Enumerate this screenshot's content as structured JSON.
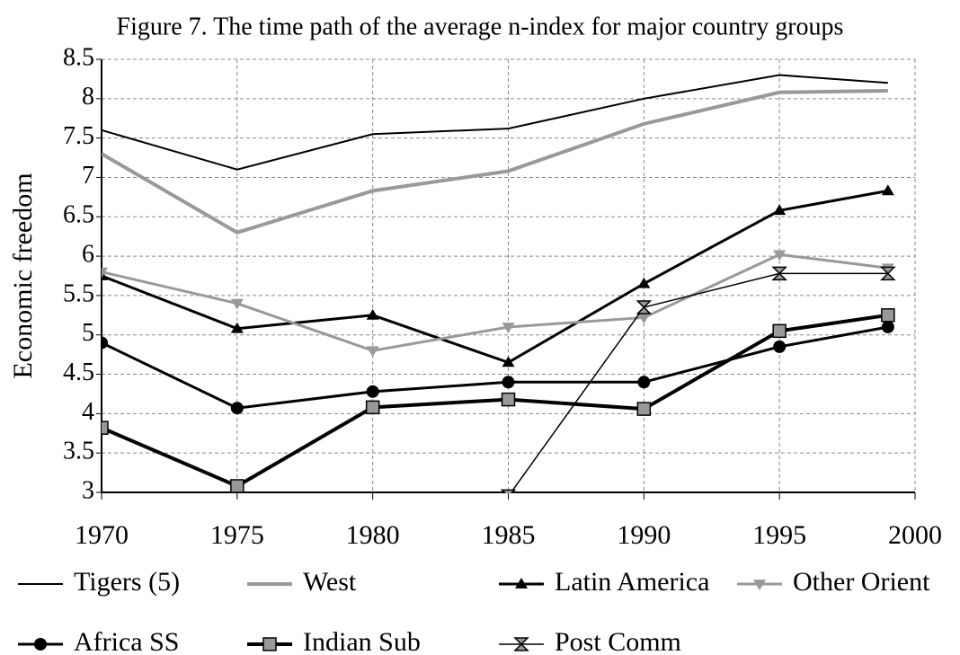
{
  "chart_data": {
    "type": "line",
    "title": "Figure 7. The time path of the average n-index for major country groups",
    "y_label": "Economic freedom",
    "x": [
      1970,
      1975,
      1980,
      1985,
      1990,
      1995,
      1999
    ],
    "xlim": [
      1970,
      2000
    ],
    "xticks": [
      1970,
      1975,
      1980,
      1985,
      1990,
      1995,
      2000
    ],
    "ylim": [
      3,
      8.5
    ],
    "yticks": [
      3,
      3.5,
      4,
      4.5,
      5,
      5.5,
      6,
      6.5,
      7,
      7.5,
      8,
      8.5
    ],
    "grid": true,
    "legend": "bottom",
    "series": [
      {
        "name": "Tigers (5)",
        "color": "#000000",
        "width": 2,
        "marker": "none",
        "values": [
          7.6,
          7.1,
          7.55,
          7.62,
          8.0,
          8.3,
          8.2
        ]
      },
      {
        "name": "West",
        "color": "#999999",
        "width": 4,
        "marker": "none",
        "values": [
          7.3,
          6.3,
          6.83,
          7.08,
          7.68,
          8.08,
          8.1
        ]
      },
      {
        "name": "Latin America",
        "color": "#000000",
        "width": 3,
        "marker": "triangle-up",
        "values": [
          5.75,
          5.08,
          5.25,
          4.65,
          5.65,
          6.58,
          6.83
        ]
      },
      {
        "name": "Other Orient",
        "color": "#999999",
        "width": 3,
        "marker": "triangle-down",
        "values": [
          5.8,
          5.4,
          4.8,
          5.1,
          5.22,
          6.02,
          5.85
        ]
      },
      {
        "name": "Africa SS",
        "color": "#000000",
        "width": 3,
        "marker": "circle",
        "values": [
          4.9,
          4.07,
          4.28,
          4.4,
          4.4,
          4.85,
          5.1
        ]
      },
      {
        "name": "Indian Sub",
        "color": "#000000",
        "width": 4,
        "marker": "square",
        "values": [
          3.82,
          3.08,
          4.08,
          4.18,
          4.06,
          5.05,
          5.25
        ]
      },
      {
        "name": "Post Comm",
        "color": "#000000",
        "width": 1.5,
        "marker": "hourglass",
        "values": [
          null,
          null,
          null,
          2.95,
          5.35,
          5.78,
          5.78
        ]
      }
    ]
  }
}
